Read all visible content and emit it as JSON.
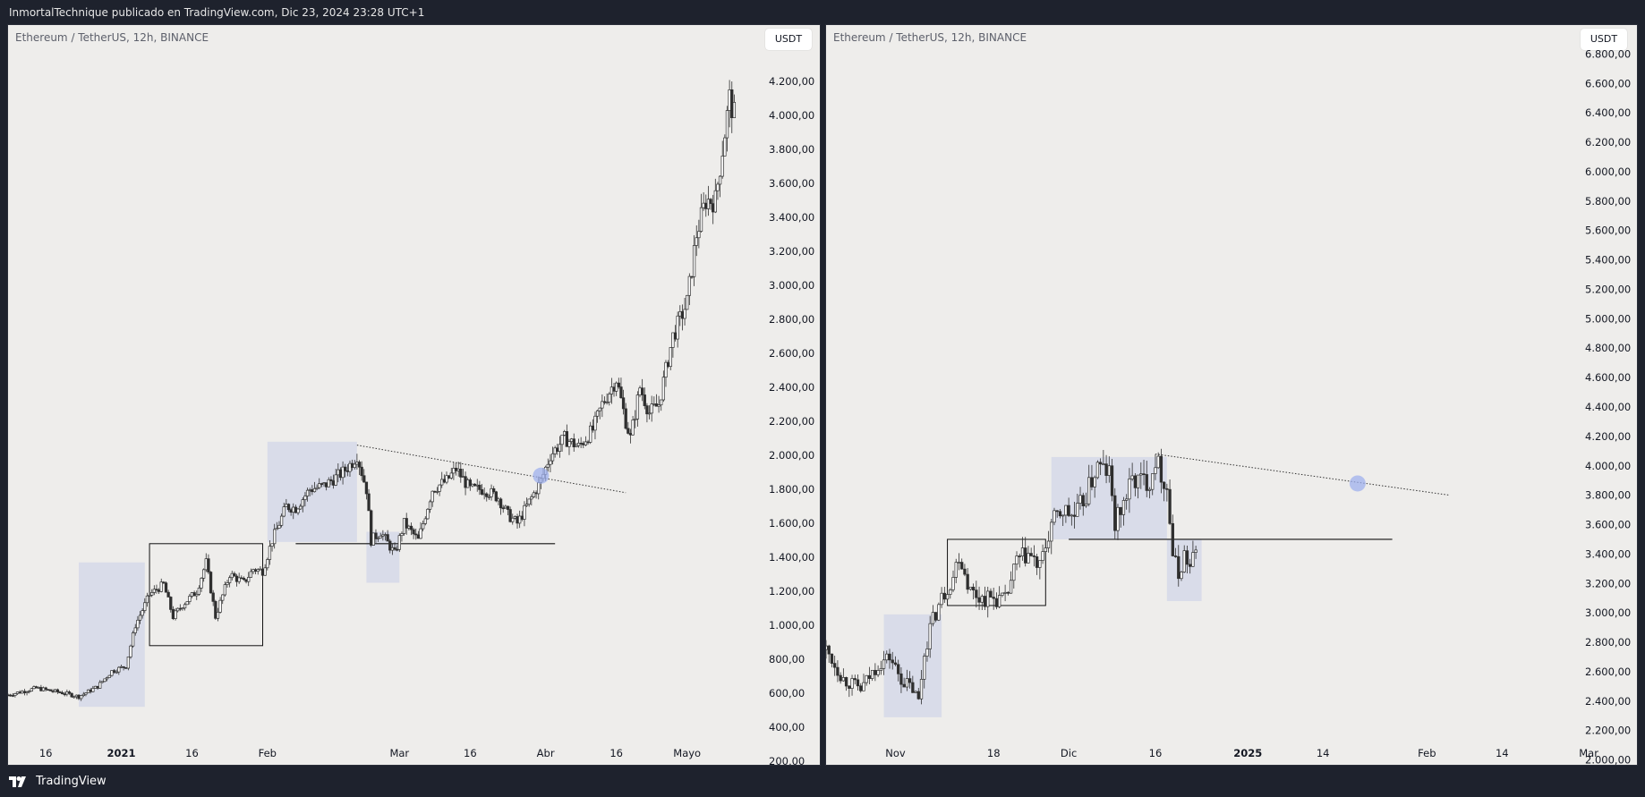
{
  "header": {
    "attribution": "InmortalTechnique publicado en TradingView.com, Dic 23, 2024 23:28 UTC+1"
  },
  "footer": {
    "brand": "TradingView",
    "logo_icon": "tradingview-logo-icon"
  },
  "colors": {
    "background": "#eeedeb",
    "frame": "#1e222d",
    "zone_fill": "#c9cde8",
    "candle": "#2f2f2f",
    "target_circle": "#9fb0ee"
  },
  "chart_data": [
    {
      "type": "candlestick",
      "title": "Ethereum / TetherUS, 12h, BINANCE",
      "currency_button": "USDT",
      "y_tick_labels": [
        "200,00",
        "400,00",
        "600,00",
        "800,00",
        "1.000,00",
        "1.200,00",
        "1.400,00",
        "1.600,00",
        "1.800,00",
        "2.000,00",
        "2.200,00",
        "2.400,00",
        "2.600,00",
        "2.800,00",
        "3.000,00",
        "3.200,00",
        "3.400,00",
        "3.600,00",
        "3.800,00",
        "4.000,00",
        "4.200,00"
      ],
      "ylim": [
        100,
        4400
      ],
      "x_tick_labels": [
        "16",
        "2021",
        "16",
        "Feb",
        "Mar",
        "16",
        "Abr",
        "16",
        "Mayo"
      ],
      "x_tick_dates": [
        "2020-12-16",
        "2021-01-01",
        "2021-01-16",
        "2021-02-01",
        "2021-03-01",
        "2021-03-16",
        "2021-04-01",
        "2021-04-16",
        "2021-05-01"
      ],
      "xlim": [
        "2020-12-08",
        "2021-05-17"
      ],
      "price_path": [
        [
          "2020-12-08",
          590
        ],
        [
          "2020-12-14",
          630
        ],
        [
          "2020-12-20",
          600
        ],
        [
          "2020-12-23",
          580
        ],
        [
          "2020-12-27",
          640
        ],
        [
          "2020-12-30",
          730
        ],
        [
          "2021-01-02",
          760
        ],
        [
          "2021-01-04",
          1000
        ],
        [
          "2021-01-07",
          1180
        ],
        [
          "2021-01-10",
          1240
        ],
        [
          "2021-01-12",
          1050
        ],
        [
          "2021-01-14",
          1120
        ],
        [
          "2021-01-17",
          1200
        ],
        [
          "2021-01-19",
          1370
        ],
        [
          "2021-01-21",
          1050
        ],
        [
          "2021-01-24",
          1300
        ],
        [
          "2021-01-27",
          1250
        ],
        [
          "2021-01-29",
          1330
        ],
        [
          "2021-01-31",
          1320
        ],
        [
          "2021-02-02",
          1500
        ],
        [
          "2021-02-05",
          1700
        ],
        [
          "2021-02-07",
          1690
        ],
        [
          "2021-02-10",
          1800
        ],
        [
          "2021-02-13",
          1820
        ],
        [
          "2021-02-17",
          1900
        ],
        [
          "2021-02-19",
          1960
        ],
        [
          "2021-02-20",
          2000
        ],
        [
          "2021-02-22",
          1800
        ],
        [
          "2021-02-23",
          1500
        ],
        [
          "2021-02-25",
          1550
        ],
        [
          "2021-02-28",
          1420
        ],
        [
          "2021-03-02",
          1600
        ],
        [
          "2021-03-05",
          1500
        ],
        [
          "2021-03-08",
          1800
        ],
        [
          "2021-03-11",
          1850
        ],
        [
          "2021-03-13",
          1920
        ],
        [
          "2021-03-16",
          1800
        ],
        [
          "2021-03-19",
          1800
        ],
        [
          "2021-03-22",
          1750
        ],
        [
          "2021-03-24",
          1650
        ],
        [
          "2021-03-26",
          1600
        ],
        [
          "2021-03-29",
          1750
        ],
        [
          "2021-03-31",
          1850
        ],
        [
          "2021-04-02",
          2000
        ],
        [
          "2021-04-05",
          2100
        ],
        [
          "2021-04-08",
          2050
        ],
        [
          "2021-04-11",
          2150
        ],
        [
          "2021-04-13",
          2300
        ],
        [
          "2021-04-16",
          2450
        ],
        [
          "2021-04-18",
          2200
        ],
        [
          "2021-04-19",
          2100
        ],
        [
          "2021-04-21",
          2400
        ],
        [
          "2021-04-23",
          2250
        ],
        [
          "2021-04-25",
          2300
        ],
        [
          "2021-04-28",
          2700
        ],
        [
          "2021-05-01",
          2900
        ],
        [
          "2021-05-03",
          3300
        ],
        [
          "2021-05-05",
          3500
        ],
        [
          "2021-05-07",
          3500
        ],
        [
          "2021-05-09",
          3900
        ],
        [
          "2021-05-10",
          4100
        ],
        [
          "2021-05-11",
          4000
        ]
      ],
      "zones": [
        {
          "from": "2020-12-23",
          "to": "2021-01-06",
          "low": 520,
          "high": 1370
        },
        {
          "from": "2021-02-01",
          "to": "2021-02-20",
          "low": 1490,
          "high": 2080
        },
        {
          "from": "2021-02-22",
          "to": "2021-03-01",
          "low": 1250,
          "high": 1550
        }
      ],
      "consolidation_box": {
        "from": "2021-01-07",
        "to": "2021-01-31",
        "low": 880,
        "high": 1480
      },
      "support_line": {
        "from": "2021-02-07",
        "to": "2021-04-03",
        "price": 1480
      },
      "trendline": {
        "from": [
          "2021-02-20",
          2060
        ],
        "to": [
          "2021-04-18",
          1780
        ]
      },
      "target_marker": {
        "date": "2021-03-31",
        "price": 1880
      }
    },
    {
      "type": "candlestick",
      "title": "Ethereum / TetherUS, 12h, BINANCE",
      "currency_button": "USDT",
      "y_tick_labels": [
        "2.000,00",
        "2.200,00",
        "2.400,00",
        "2.600,00",
        "2.800,00",
        "3.000,00",
        "3.200,00",
        "3.400,00",
        "3.600,00",
        "3.800,00",
        "4.000,00",
        "4.200,00",
        "4.400,00",
        "4.600,00",
        "4.800,00",
        "5.000,00",
        "5.200,00",
        "5.400,00",
        "5.600,00",
        "5.800,00",
        "6.000,00",
        "6.200,00",
        "6.400,00",
        "6.600,00",
        "6.800,00"
      ],
      "ylim": [
        1900,
        6900
      ],
      "x_tick_labels": [
        "Nov",
        "18",
        "Dic",
        "16",
        "2025",
        "14",
        "Feb",
        "14",
        "Mar"
      ],
      "x_tick_dates": [
        "2024-11-01",
        "2024-11-18",
        "2024-12-01",
        "2024-12-16",
        "2025-01-01",
        "2025-01-14",
        "2025-02-01",
        "2025-02-14",
        "2025-03-01"
      ],
      "xlim": [
        "2024-10-20",
        "2025-03-03"
      ],
      "price_path": [
        [
          "2024-10-20",
          2750
        ],
        [
          "2024-10-23",
          2550
        ],
        [
          "2024-10-26",
          2480
        ],
        [
          "2024-10-29",
          2650
        ],
        [
          "2024-10-31",
          2700
        ],
        [
          "2024-11-02",
          2550
        ],
        [
          "2024-11-04",
          2480
        ],
        [
          "2024-11-05",
          2400
        ],
        [
          "2024-11-06",
          2720
        ],
        [
          "2024-11-07",
          2900
        ],
        [
          "2024-11-09",
          3100
        ],
        [
          "2024-11-11",
          3250
        ],
        [
          "2024-11-12",
          3400
        ],
        [
          "2024-11-14",
          3150
        ],
        [
          "2024-11-16",
          3100
        ],
        [
          "2024-11-18",
          3100
        ],
        [
          "2024-11-20",
          3080
        ],
        [
          "2024-11-22",
          3350
        ],
        [
          "2024-11-24",
          3400
        ],
        [
          "2024-11-26",
          3300
        ],
        [
          "2024-11-28",
          3600
        ],
        [
          "2024-11-30",
          3700
        ],
        [
          "2024-12-02",
          3650
        ],
        [
          "2024-12-04",
          3800
        ],
        [
          "2024-12-06",
          4000
        ],
        [
          "2024-12-08",
          3950
        ],
        [
          "2024-12-09",
          3600
        ],
        [
          "2024-12-10",
          3700
        ],
        [
          "2024-12-12",
          3900
        ],
        [
          "2024-12-15",
          3900
        ],
        [
          "2024-12-16",
          4050
        ],
        [
          "2024-12-18",
          3850
        ],
        [
          "2024-12-19",
          3400
        ],
        [
          "2024-12-20",
          3250
        ],
        [
          "2024-12-21",
          3400
        ],
        [
          "2024-12-22",
          3300
        ],
        [
          "2024-12-23",
          3420
        ]
      ],
      "zones": [
        {
          "from": "2024-10-30",
          "to": "2024-11-09",
          "low": 2290,
          "high": 2990
        },
        {
          "from": "2024-11-28",
          "to": "2024-12-18",
          "low": 3500,
          "high": 4060
        },
        {
          "from": "2024-12-18",
          "to": "2024-12-24",
          "low": 3080,
          "high": 3500
        }
      ],
      "consolidation_box": {
        "from": "2024-11-10",
        "to": "2024-11-27",
        "low": 3050,
        "high": 3500
      },
      "support_line": {
        "from": "2024-12-01",
        "to": "2025-01-26",
        "price": 3500
      },
      "trendline": {
        "from": [
          "2024-12-16",
          4080
        ],
        "to": [
          "2025-02-05",
          3800
        ]
      },
      "target_marker": {
        "date": "2025-01-20",
        "price": 3880
      }
    }
  ]
}
